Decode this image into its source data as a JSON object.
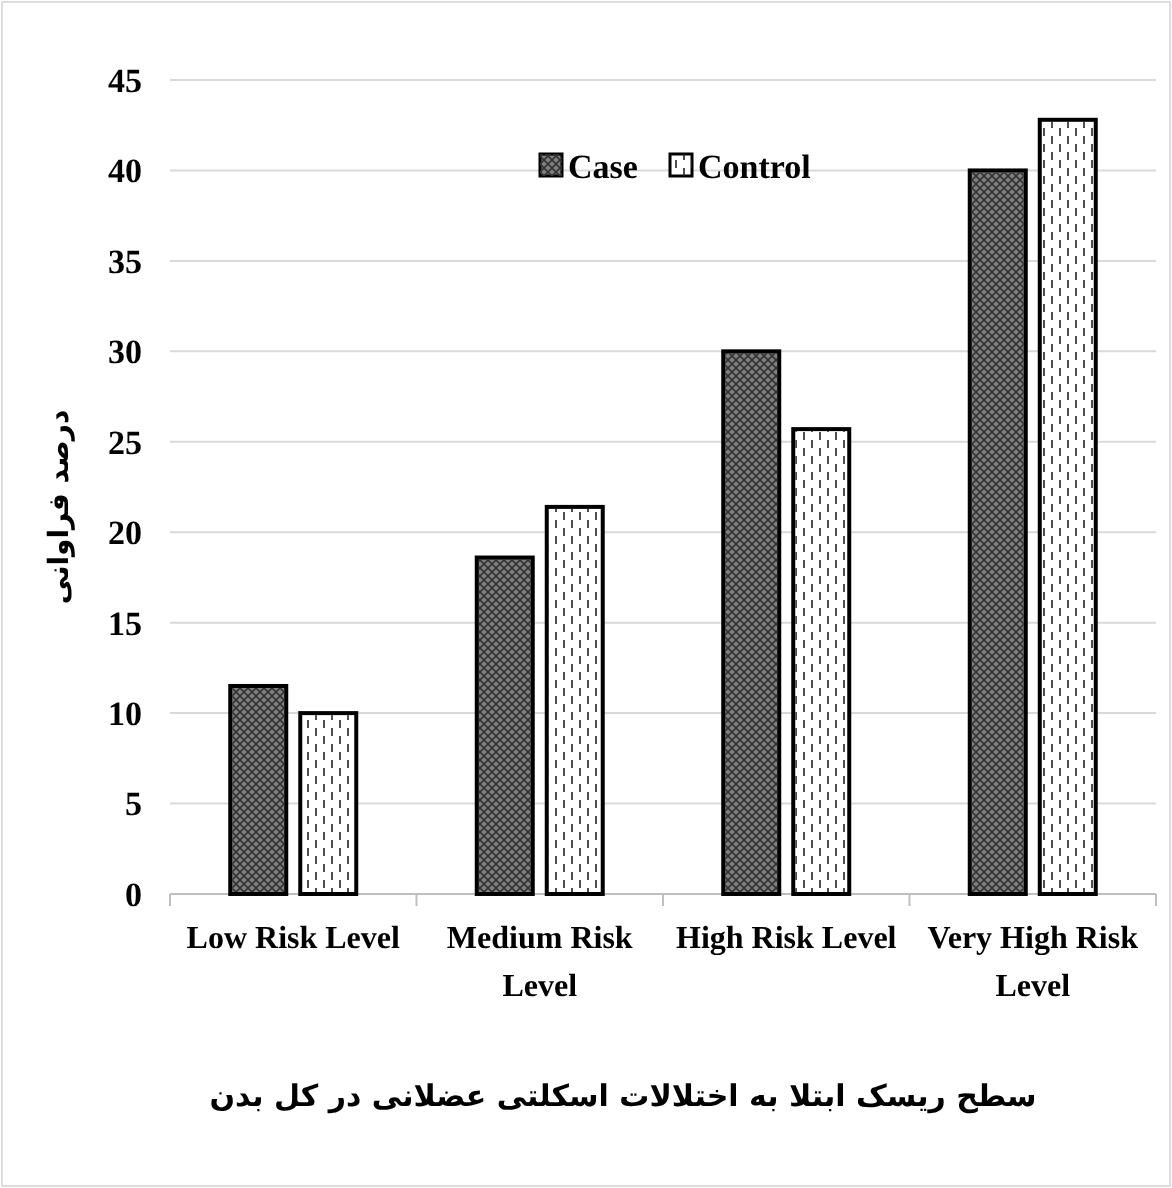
{
  "chart_data": {
    "type": "bar",
    "xlabel": "سطح ریسک ابتلا به اختلالات اسکلتی عضلانی در کل بدن",
    "ylabel": "درصد فراوانی",
    "categories": [
      "Low Risk Level",
      "Medium Risk Level",
      "High Risk Level",
      "Very High Risk Level"
    ],
    "series": [
      {
        "name": "Case",
        "color": "#7f7f7f",
        "values": [
          11.5,
          18.6,
          30,
          40
        ]
      },
      {
        "name": "Control",
        "color": "#ffffff",
        "values": [
          10,
          21.4,
          25.7,
          42.8
        ]
      }
    ],
    "ylim": [
      0,
      45
    ],
    "yticks": [
      0,
      5,
      10,
      15,
      20,
      25,
      30,
      35,
      40,
      45
    ],
    "grid": "y",
    "legend": "top"
  }
}
